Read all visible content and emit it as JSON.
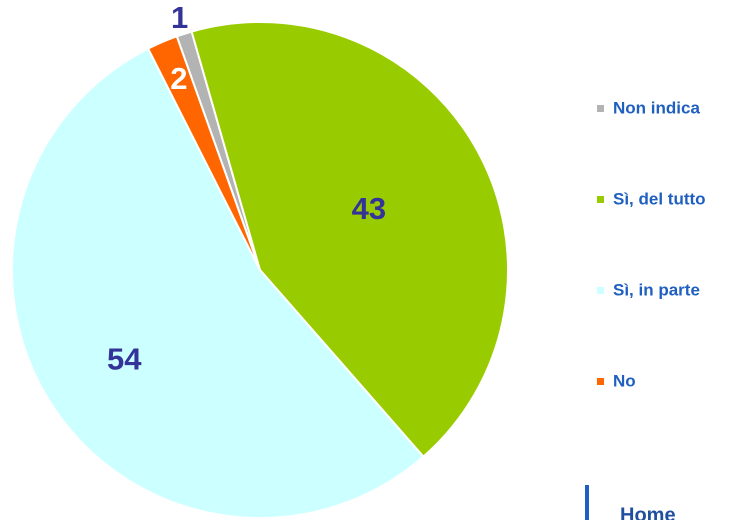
{
  "chart_data": {
    "type": "pie",
    "categories": [
      "Non indica",
      "Sì, del tutto",
      "Sì, in parte",
      "No"
    ],
    "values": [
      1,
      43,
      54,
      2
    ],
    "colors": [
      "#b3b3b3",
      "#99cc00",
      "#ccffff",
      "#ff6600"
    ],
    "legend": "right"
  },
  "button": "Home"
}
